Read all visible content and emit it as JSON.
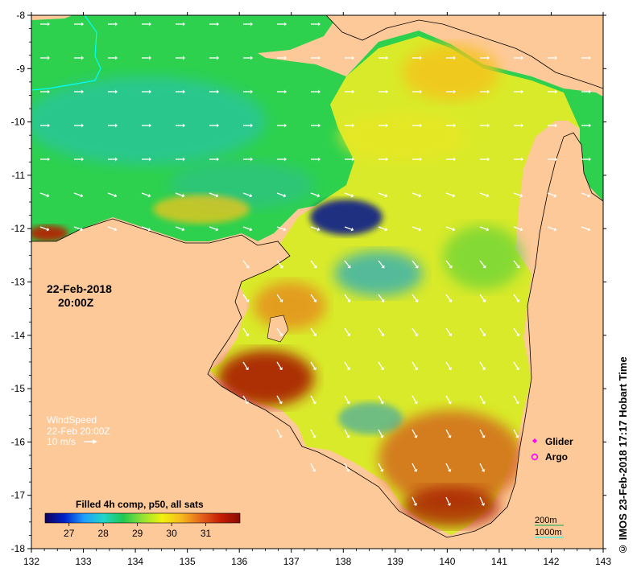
{
  "map": {
    "title_date": "22-Feb-2018",
    "title_time": "20:00Z",
    "credit": "© IMOS 23-Feb-2018 17:17 Hobart Time",
    "x_axis": {
      "range": [
        132,
        143
      ],
      "ticks": [
        "132",
        "133",
        "134",
        "135",
        "136",
        "137",
        "138",
        "139",
        "140",
        "141",
        "142",
        "143"
      ]
    },
    "y_axis": {
      "range": [
        -8,
        -18
      ],
      "ticks": [
        "-8",
        "-9",
        "-10",
        "-11",
        "-12",
        "-13",
        "-14",
        "-15",
        "-16",
        "-17",
        "-18"
      ]
    },
    "wind_legend": {
      "title": "WindSpeed",
      "time": "22-Feb 20:00Z",
      "scale": "10 m/s"
    },
    "markers": {
      "glider": "Glider",
      "argo": "Argo"
    },
    "colorbar": {
      "title": "Filled 4h comp, p50, all sats",
      "labels": [
        "27",
        "28",
        "29",
        "30",
        "31"
      ],
      "range": [
        26.3,
        32.0
      ],
      "colors": [
        "#10005a",
        "#0022cc",
        "#1f9fff",
        "#1fd6c8",
        "#1fc851",
        "#93e233",
        "#f2f20d",
        "#f5b81d",
        "#e6641b",
        "#c51e05",
        "#8b0a00"
      ]
    },
    "depth_legend": {
      "contour_200": "200m",
      "contour_1000": "1000m"
    },
    "colors": {
      "land": "#fec998",
      "frame": "#000000",
      "wind_arrow": "#ffffff",
      "glider": "#ff00ff",
      "argo": "#ff00ff",
      "contour_200": "#00b050",
      "contour_1000": "#00ffff"
    }
  }
}
